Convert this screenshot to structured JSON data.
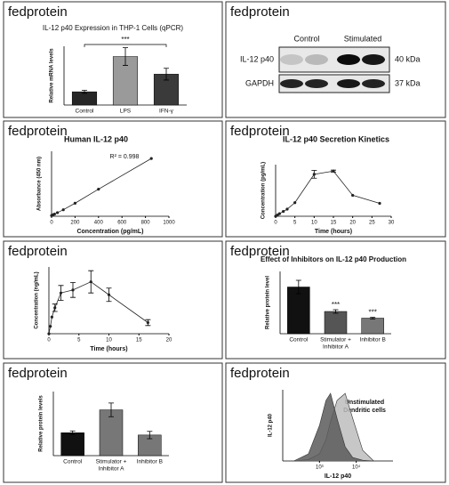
{
  "panel_labels": [
    "fedprotein",
    "fedprotein",
    "fedprotein",
    "fedprotein",
    "fedprotein",
    "fedprotein",
    "fedprotein",
    "fedprotein"
  ],
  "blot": {
    "lanes": [
      "Control",
      "Stimulated"
    ],
    "rows": [
      {
        "label": "IL-12 p40",
        "size": "40 kDa"
      },
      {
        "label": "GAPDH",
        "size": "37 kDa"
      }
    ]
  },
  "chart_data": [
    {
      "type": "bar",
      "title": "IL-12 p40 Expression in THP-1 Cells (qPCR)",
      "ylabel": "Relative mRNA levels",
      "categories": [
        "Control",
        "LPS",
        "IFN-γ"
      ],
      "values": [
        0.9,
        3.3,
        2.1
      ],
      "errors": [
        0.1,
        0.6,
        0.4
      ],
      "colors": [
        "#262626",
        "#9a9a9a",
        "#3a3a3a"
      ],
      "ylim": [
        0,
        4
      ],
      "bracket": "***"
    },
    {
      "type": "line",
      "title": "Human IL-12 p40",
      "xlabel": "Concentration (pg/mL)",
      "ylabel": "Absorbance (450 nm)",
      "annotation": "R² = 0.998",
      "x": [
        0,
        12.5,
        25,
        50,
        100,
        200,
        400,
        850
      ],
      "values": [
        0.002,
        0.004,
        0.006,
        0.01,
        0.018,
        0.036,
        0.075,
        0.16
      ],
      "color": "#222222",
      "xlim": [
        0,
        1000
      ],
      "xticks": [
        0,
        200,
        400,
        600,
        800,
        1000
      ],
      "ylim": [
        0,
        0.18
      ]
    },
    {
      "type": "line",
      "title": "IL-12 p40 Secretion Kinetics",
      "xlabel": "Time (hours)",
      "ylabel": "Concentration (pg/mL)",
      "x": [
        0,
        0.5,
        1,
        2,
        3,
        5,
        10,
        15,
        20,
        27
      ],
      "values": [
        0,
        40,
        80,
        150,
        220,
        420,
        1300,
        1400,
        650,
        400
      ],
      "errors": [
        0,
        0,
        0,
        0,
        0,
        0,
        120,
        30,
        0,
        0
      ],
      "color": "#222222",
      "xlim": [
        0,
        30
      ],
      "xticks": [
        0,
        5,
        10,
        15,
        20,
        25,
        30
      ],
      "ylim": [
        0,
        1600
      ]
    },
    {
      "type": "line",
      "xlabel": "Time (hours)",
      "ylabel": "Concentration (ng/mL)",
      "x": [
        0,
        0.25,
        0.5,
        1,
        2,
        4,
        7,
        10,
        16.5
      ],
      "values": [
        0,
        200,
        450,
        700,
        1100,
        1180,
        1400,
        1050,
        300
      ],
      "errors": [
        0,
        0,
        0,
        100,
        200,
        200,
        300,
        180,
        80
      ],
      "color": "#222222",
      "xlim": [
        0,
        20
      ],
      "xticks": [
        0,
        5,
        10,
        15,
        20
      ],
      "ylim": [
        0,
        1800
      ]
    },
    {
      "type": "bar",
      "title": "Effect of Inhibitors on IL-12 p40 Production",
      "ylabel": "Relative protein level",
      "categories": [
        "Control",
        [
          "Stimulator +",
          "Inhibitor A"
        ],
        "Inhibitor B"
      ],
      "values": [
        1.05,
        0.5,
        0.35
      ],
      "errors": [
        0.15,
        0.04,
        0.02
      ],
      "significance": [
        null,
        "***",
        "***"
      ],
      "colors": [
        "#111111",
        "#555555",
        "#777777"
      ],
      "ylim": [
        0,
        1.4
      ]
    },
    {
      "type": "bar",
      "ylabel": "Relative protein levels",
      "categories": [
        "Control",
        [
          "Stimulator +",
          "Inhibitor A"
        ],
        "Inhibitor B"
      ],
      "values": [
        0.5,
        1.0,
        0.45
      ],
      "errors": [
        0.04,
        0.15,
        0.08
      ],
      "colors": [
        "#111111",
        "#777777",
        "#777777"
      ],
      "ylim": [
        0,
        1.4
      ]
    },
    {
      "type": "area",
      "xlabel": "IL-12 p40",
      "ylabel": "IL-12 p40",
      "annotation": [
        "Unstimulated",
        "Dendritic cells"
      ],
      "log_x": true,
      "x": [
        200,
        500,
        1000,
        1500,
        2000,
        3000,
        5000,
        8000,
        15000,
        30000
      ],
      "xlim": [
        100,
        100000
      ],
      "xticks": [
        {
          "value": 1000,
          "label": "10³"
        },
        {
          "value": 10000,
          "label": "10⁴"
        }
      ],
      "ylim": [
        0,
        100
      ],
      "series": [
        {
          "color": "#bdbdbd",
          "values": [
            0,
            2,
            10,
            30,
            55,
            85,
            95,
            60,
            15,
            0
          ]
        },
        {
          "color": "#5a5a5a",
          "values": [
            0,
            10,
            50,
            85,
            95,
            60,
            20,
            5,
            1,
            0
          ]
        }
      ]
    }
  ]
}
